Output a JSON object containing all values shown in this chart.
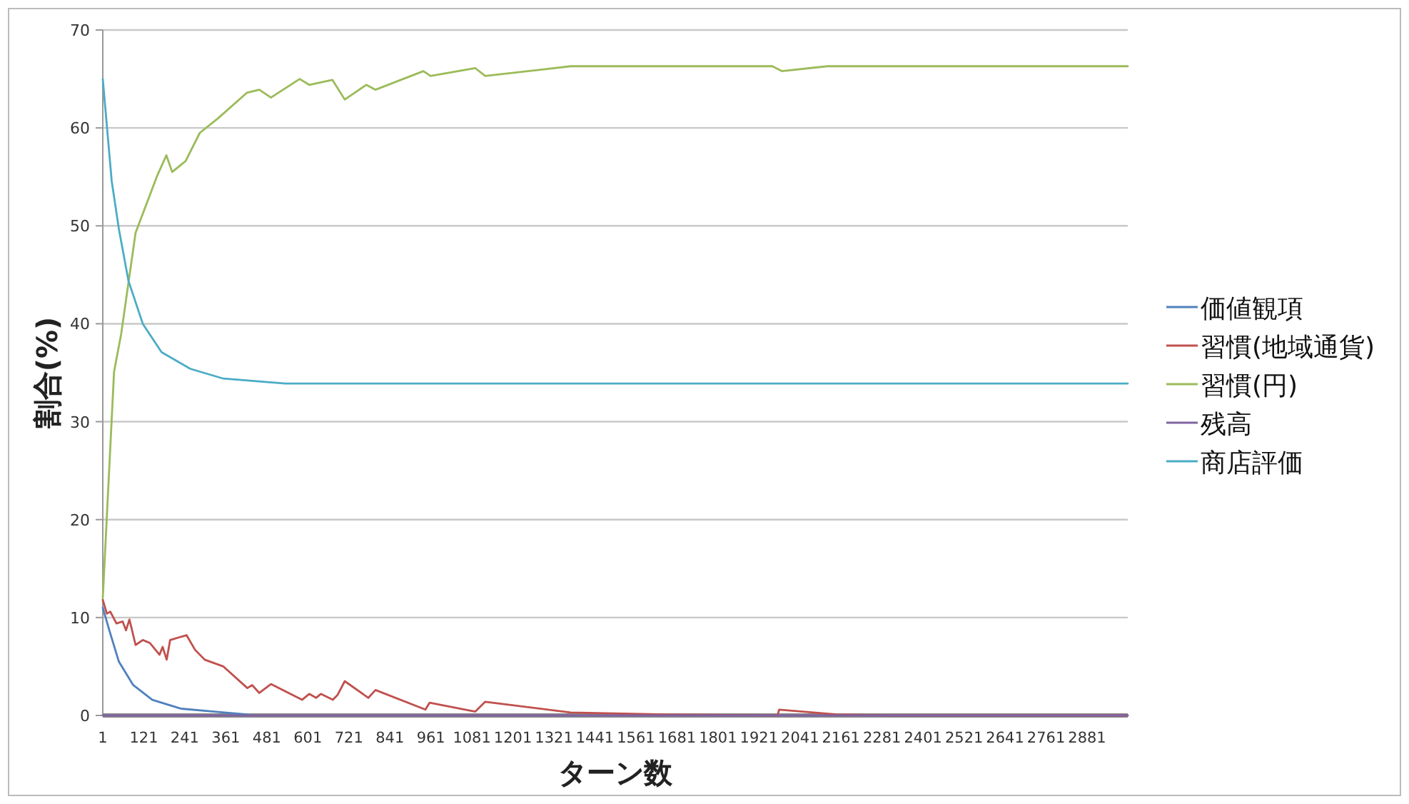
{
  "chart_data": {
    "type": "line",
    "xlabel": "ターン数",
    "ylabel": "割合(%)",
    "xlim": [
      1,
      3000
    ],
    "ylim": [
      0,
      70
    ],
    "xticks": [
      1,
      121,
      241,
      361,
      481,
      601,
      721,
      841,
      961,
      1081,
      1201,
      1321,
      1441,
      1561,
      1681,
      1801,
      1921,
      2041,
      2161,
      2281,
      2401,
      2521,
      2641,
      2761,
      2881
    ],
    "yticks": [
      0,
      10,
      20,
      30,
      40,
      50,
      60,
      70
    ],
    "grid": "y",
    "legend": "right",
    "line_style": "solid",
    "series": [
      {
        "name": "価値観項",
        "color": "#4f81bd",
        "x": [
          1,
          21,
          48,
          90,
          146,
          229,
          327,
          424
        ],
        "values": [
          11,
          8.6,
          5.5,
          3.1,
          1.6,
          0.7,
          0.4,
          0.1
        ]
      },
      {
        "name": "習慣(地域通貨)",
        "color": "#c0504d",
        "x": [
          1,
          13,
          23,
          41,
          59,
          69,
          79,
          97,
          118,
          139,
          167,
          176,
          188,
          198,
          246,
          271,
          299,
          354,
          424,
          438,
          459,
          493,
          584,
          605,
          625,
          639,
          674,
          688,
          709,
          778,
          799,
          945,
          957,
          1091,
          1120,
          1370,
          1650,
          1975,
          1980,
          2150,
          2300,
          3000
        ],
        "values": [
          11.8,
          10.4,
          10.6,
          9.4,
          9.6,
          8.7,
          9.8,
          7.2,
          7.7,
          7.4,
          6.2,
          7.0,
          5.7,
          7.7,
          8.2,
          6.7,
          5.7,
          5.0,
          2.8,
          3.1,
          2.3,
          3.2,
          1.6,
          2.2,
          1.8,
          2.2,
          1.6,
          2.1,
          3.5,
          1.8,
          2.6,
          0.6,
          1.3,
          0.4,
          1.4,
          0.3,
          0.1,
          0,
          0.6,
          0.1,
          0,
          0
        ]
      },
      {
        "name": "習慣(円)",
        "color": "#9bbb59",
        "x": [
          1,
          34,
          55,
          97,
          160,
          187,
          204,
          243,
          285,
          339,
          423,
          459,
          493,
          577,
          605,
          673,
          709,
          772,
          799,
          939,
          960,
          1091,
          1120,
          1370,
          1960,
          1988,
          2121,
          3000
        ],
        "values": [
          12,
          35.1,
          39,
          49.3,
          55.1,
          57.2,
          55.5,
          56.6,
          59.5,
          61,
          63.6,
          63.9,
          63.1,
          65.0,
          64.4,
          64.9,
          62.9,
          64.4,
          63.9,
          65.8,
          65.3,
          66.1,
          65.3,
          66.3,
          66.3,
          65.8,
          66.3,
          66.3
        ]
      },
      {
        "name": "残高",
        "color": "#8064a2",
        "x": [
          1,
          3000
        ],
        "values": [
          0,
          0
        ]
      },
      {
        "name": "商店評価",
        "color": "#4bacc6",
        "x": [
          1,
          27,
          48,
          76,
          118,
          173,
          257,
          354,
          535,
          3000
        ],
        "values": [
          65.0,
          54.6,
          49.7,
          44.4,
          40.0,
          37.1,
          35.4,
          34.4,
          33.9,
          33.9
        ]
      }
    ]
  }
}
